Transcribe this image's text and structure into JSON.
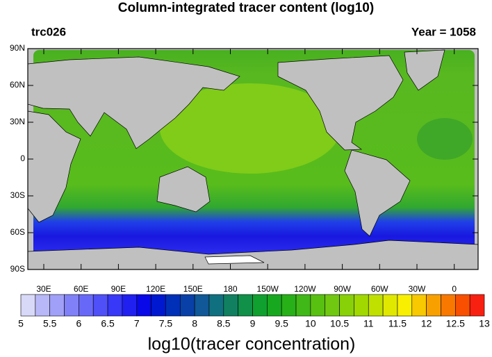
{
  "header": {
    "title": "Column-integrated tracer content (log10)",
    "left_label": "trc026",
    "right_label": "Year = 1058"
  },
  "map": {
    "lat_labels": [
      "90N",
      "60N",
      "30N",
      "0",
      "30S",
      "60S",
      "90S"
    ],
    "lon_labels": [
      "30E",
      "60E",
      "90E",
      "120E",
      "150E",
      "180",
      "150W",
      "120W",
      "90W",
      "60W",
      "30W",
      "0"
    ]
  },
  "colorbar": {
    "colors": [
      "#d8d8f8",
      "#b8b8f8",
      "#a0a0f8",
      "#8080f8",
      "#6868f8",
      "#5050f8",
      "#3838f8",
      "#2020f0",
      "#0808e8",
      "#0018d0",
      "#0030b8",
      "#0840a8",
      "#105898",
      "#107080",
      "#108060",
      "#109048",
      "#10a030",
      "#18a820",
      "#28b018",
      "#40b818",
      "#58c010",
      "#70c810",
      "#88d008",
      "#a0d800",
      "#c0e000",
      "#e0e800",
      "#f8f000",
      "#f8c800",
      "#f8a000",
      "#f87800",
      "#f85000",
      "#f82010"
    ],
    "ticks": [
      5,
      5.5,
      6,
      6.5,
      7,
      7.5,
      8,
      8.5,
      9,
      9.5,
      10,
      10.5,
      11,
      11.5,
      12,
      12.5,
      13
    ],
    "title": "log10(tracer concentration)"
  }
}
